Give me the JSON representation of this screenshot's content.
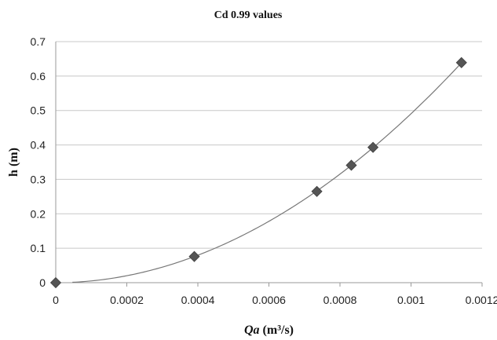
{
  "chart_data": {
    "type": "scatter",
    "title": "Cd 0.99 values",
    "xlabel": "Qa (m³/s)",
    "ylabel": "h (m)",
    "xlim": [
      0,
      0.0012
    ],
    "ylim": [
      0,
      0.7
    ],
    "x_ticks": [
      "0",
      "0.0002",
      "0.0004",
      "0.0006",
      "0.0008",
      "0.001",
      "0.0012"
    ],
    "y_ticks": [
      "0",
      "0.1",
      "0.2",
      "0.3",
      "0.4",
      "0.5",
      "0.6",
      "0.7"
    ],
    "grid": "horizontal",
    "marker": "diamond",
    "marker_color": "#555555",
    "trendline": "power",
    "series": [
      {
        "x": [
          0,
          0.00039,
          0.000735,
          0.000832,
          0.000893,
          0.001142
        ],
        "y": [
          0,
          0.076,
          0.265,
          0.341,
          0.393,
          0.639
        ]
      }
    ]
  }
}
